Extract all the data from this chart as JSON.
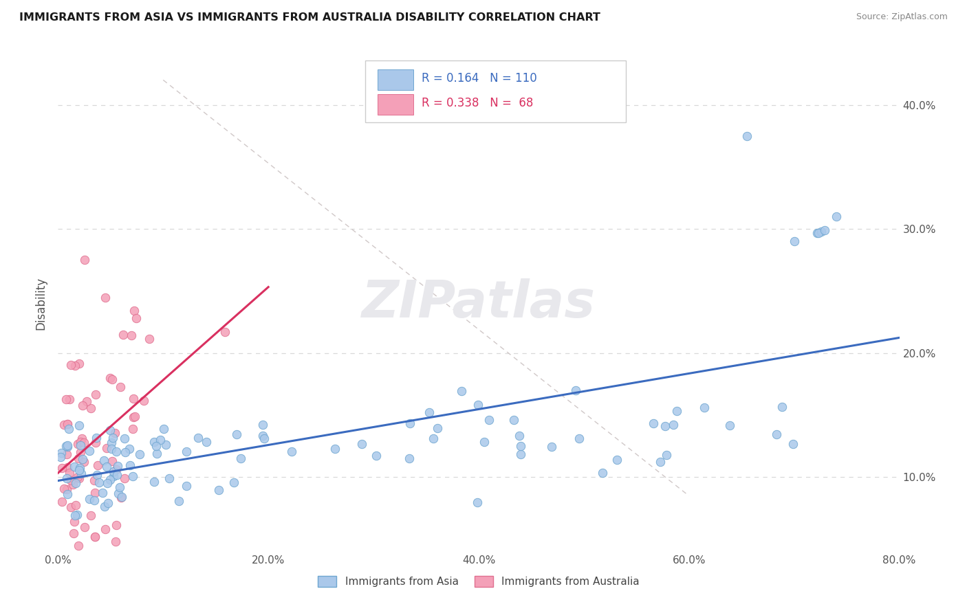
{
  "title": "IMMIGRANTS FROM ASIA VS IMMIGRANTS FROM AUSTRALIA DISABILITY CORRELATION CHART",
  "source_text": "Source: ZipAtlas.com",
  "ylabel": "Disability",
  "xlim": [
    0.0,
    0.8
  ],
  "ylim": [
    0.04,
    0.44
  ],
  "x_ticks": [
    0.0,
    0.2,
    0.4,
    0.6,
    0.8
  ],
  "x_tick_labels": [
    "0.0%",
    "20.0%",
    "40.0%",
    "60.0%",
    "80.0%"
  ],
  "y_ticks": [
    0.1,
    0.2,
    0.3,
    0.4
  ],
  "y_tick_labels": [
    "10.0%",
    "20.0%",
    "30.0%",
    "40.0%"
  ],
  "legend_label_asia": "Immigrants from Asia",
  "legend_label_australia": "Immigrants from Australia",
  "blue_face": "#aac8ea",
  "blue_edge": "#6ea6d0",
  "pink_face": "#f4a0b8",
  "pink_edge": "#e07090",
  "blue_line_color": "#3b6bbf",
  "pink_line_color": "#d93060",
  "ref_line_color": "#d0c8c8",
  "grid_color": "#d8d8d8",
  "background_color": "#ffffff",
  "watermark_color": "#e8e8ec",
  "title_color": "#1a1a1a",
  "source_color": "#888888",
  "axis_color": "#555555",
  "legend_r1": "R = 0.164   N = 110",
  "legend_r2": "R = 0.338   N =  68",
  "legend_text_color": "#3b6bbf",
  "legend_text_color2": "#d93060"
}
